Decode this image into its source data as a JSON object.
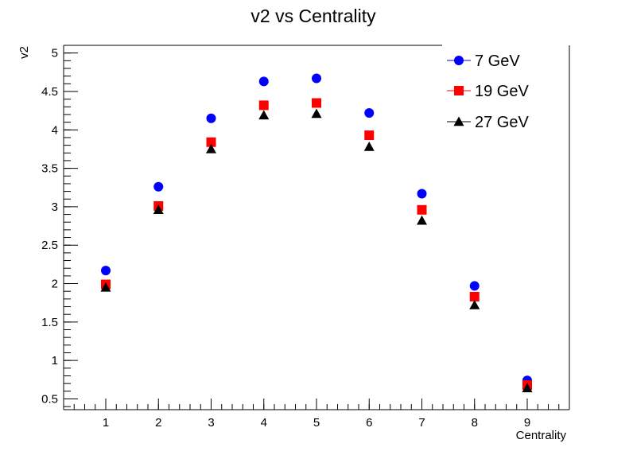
{
  "chart_data": {
    "type": "scatter",
    "title": "v2 vs Centrality",
    "xlabel": "Centrality",
    "ylabel": "v2",
    "xlim": [
      0.2,
      9.8
    ],
    "ylim": [
      0.36,
      5.1
    ],
    "x_ticks": [
      1,
      2,
      3,
      4,
      5,
      6,
      7,
      8,
      9
    ],
    "y_ticks": [
      0.5,
      1,
      1.5,
      2,
      2.5,
      3,
      3.5,
      4,
      4.5,
      5
    ],
    "x_minor_step": 0.2,
    "y_minor_step": 0.1,
    "grid": false,
    "legend_position": "top-right",
    "x": [
      1,
      2,
      3,
      4,
      5,
      6,
      7,
      8,
      9
    ],
    "series": [
      {
        "name": "7 GeV",
        "marker": "circle",
        "color": "#0000ff",
        "values": [
          2.17,
          3.26,
          4.15,
          4.63,
          4.67,
          4.22,
          3.17,
          1.97,
          0.74
        ]
      },
      {
        "name": "19 GeV",
        "marker": "square",
        "color": "#ff0000",
        "values": [
          1.99,
          3.01,
          3.84,
          4.32,
          4.35,
          3.93,
          2.96,
          1.83,
          0.68
        ]
      },
      {
        "name": "27 GeV",
        "marker": "triangle",
        "color": "#000000",
        "values": [
          1.95,
          2.96,
          3.75,
          4.19,
          4.21,
          3.78,
          2.82,
          1.72,
          0.64
        ]
      }
    ]
  }
}
